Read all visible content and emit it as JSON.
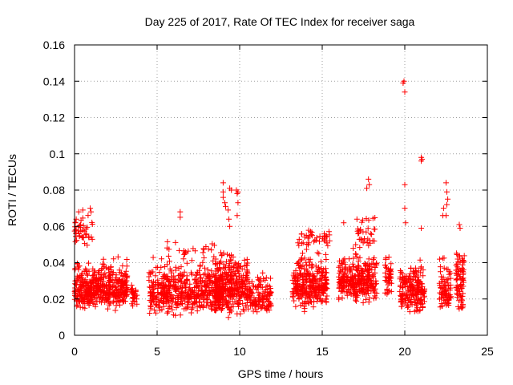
{
  "colors": {
    "marker": "#ff0000",
    "axis": "#000000",
    "grid": "#a0a0a0"
  },
  "chart_data": {
    "type": "scatter",
    "title": "Day 225 of 2017, Rate Of TEC Index for receiver saga",
    "xlabel": "GPS time / hours",
    "ylabel": "ROTI / TECUs",
    "xlim": [
      0,
      25
    ],
    "ylim": [
      0,
      0.16
    ],
    "xticks": [
      0,
      5,
      10,
      15,
      20,
      25
    ],
    "xtick_labels": [
      "0",
      "5",
      "10",
      "15",
      "20",
      "25"
    ],
    "yticks": [
      0,
      0.02,
      0.04,
      0.06,
      0.08,
      0.1,
      0.12,
      0.14,
      0.16
    ],
    "ytick_labels": [
      "0",
      "0.02",
      "0.04",
      "0.06",
      "0.08",
      "0.1",
      "0.12",
      "0.14",
      "0.16"
    ],
    "grid": true,
    "marker": "+",
    "clusters": [
      {
        "x": [
          0.0,
          3.2
        ],
        "ylow": 0.012,
        "yhigh": 0.045,
        "ymed": 0.025,
        "n": 480
      },
      {
        "x": [
          0.0,
          1.1
        ],
        "ylow": 0.045,
        "yhigh": 0.07,
        "ymed": 0.058,
        "n": 40
      },
      {
        "x": [
          3.4,
          3.8
        ],
        "ylow": 0.012,
        "yhigh": 0.032,
        "ymed": 0.022,
        "n": 30
      },
      {
        "x": [
          4.5,
          9.0
        ],
        "ylow": 0.008,
        "yhigh": 0.045,
        "ymed": 0.024,
        "n": 520
      },
      {
        "x": [
          5.5,
          8.5
        ],
        "ylow": 0.04,
        "yhigh": 0.058,
        "ymed": 0.048,
        "n": 25
      },
      {
        "x": [
          8.5,
          10.5
        ],
        "ylow": 0.008,
        "yhigh": 0.05,
        "ymed": 0.026,
        "n": 340
      },
      {
        "x": [
          10.5,
          11.9
        ],
        "ylow": 0.01,
        "yhigh": 0.04,
        "ymed": 0.02,
        "n": 130
      },
      {
        "x": [
          13.2,
          15.3
        ],
        "ylow": 0.012,
        "yhigh": 0.05,
        "ymed": 0.028,
        "n": 300
      },
      {
        "x": [
          13.5,
          15.5
        ],
        "ylow": 0.045,
        "yhigh": 0.06,
        "ymed": 0.054,
        "n": 40
      },
      {
        "x": [
          16.0,
          18.3
        ],
        "ylow": 0.015,
        "yhigh": 0.05,
        "ymed": 0.03,
        "n": 320
      },
      {
        "x": [
          17.0,
          18.2
        ],
        "ylow": 0.045,
        "yhigh": 0.07,
        "ymed": 0.055,
        "n": 35
      },
      {
        "x": [
          18.8,
          19.2
        ],
        "ylow": 0.015,
        "yhigh": 0.05,
        "ymed": 0.032,
        "n": 45
      },
      {
        "x": [
          19.7,
          21.2
        ],
        "ylow": 0.01,
        "yhigh": 0.045,
        "ymed": 0.024,
        "n": 200
      },
      {
        "x": [
          22.1,
          22.8
        ],
        "ylow": 0.01,
        "yhigh": 0.05,
        "ymed": 0.025,
        "n": 80
      },
      {
        "x": [
          23.1,
          23.6
        ],
        "ylow": 0.01,
        "yhigh": 0.055,
        "ymed": 0.028,
        "n": 80
      }
    ],
    "outliers": [
      {
        "x": 0.05,
        "y": 0.062
      },
      {
        "x": 0.1,
        "y": 0.064
      },
      {
        "x": 0.25,
        "y": 0.068
      },
      {
        "x": 0.5,
        "y": 0.069
      },
      {
        "x": 0.95,
        "y": 0.07
      },
      {
        "x": 1.0,
        "y": 0.068
      },
      {
        "x": 6.4,
        "y": 0.065
      },
      {
        "x": 6.4,
        "y": 0.068
      },
      {
        "x": 9.0,
        "y": 0.084
      },
      {
        "x": 9.0,
        "y": 0.079
      },
      {
        "x": 9.0,
        "y": 0.076
      },
      {
        "x": 9.1,
        "y": 0.073
      },
      {
        "x": 9.15,
        "y": 0.071
      },
      {
        "x": 9.4,
        "y": 0.081
      },
      {
        "x": 9.5,
        "y": 0.08
      },
      {
        "x": 9.3,
        "y": 0.069
      },
      {
        "x": 9.35,
        "y": 0.064
      },
      {
        "x": 9.4,
        "y": 0.06
      },
      {
        "x": 9.8,
        "y": 0.08
      },
      {
        "x": 9.85,
        "y": 0.078
      },
      {
        "x": 9.9,
        "y": 0.079
      },
      {
        "x": 9.9,
        "y": 0.073
      },
      {
        "x": 9.85,
        "y": 0.066
      },
      {
        "x": 16.3,
        "y": 0.062
      },
      {
        "x": 17.1,
        "y": 0.064
      },
      {
        "x": 17.7,
        "y": 0.081
      },
      {
        "x": 17.8,
        "y": 0.086
      },
      {
        "x": 17.85,
        "y": 0.083
      },
      {
        "x": 19.9,
        "y": 0.139
      },
      {
        "x": 19.95,
        "y": 0.14
      },
      {
        "x": 20.0,
        "y": 0.134
      },
      {
        "x": 20.0,
        "y": 0.083
      },
      {
        "x": 20.0,
        "y": 0.07
      },
      {
        "x": 20.05,
        "y": 0.062
      },
      {
        "x": 21.0,
        "y": 0.098
      },
      {
        "x": 21.05,
        "y": 0.097
      },
      {
        "x": 21.0,
        "y": 0.096
      },
      {
        "x": 21.0,
        "y": 0.059
      },
      {
        "x": 22.3,
        "y": 0.066
      },
      {
        "x": 22.35,
        "y": 0.07
      },
      {
        "x": 22.5,
        "y": 0.084
      },
      {
        "x": 22.55,
        "y": 0.079
      },
      {
        "x": 22.6,
        "y": 0.075
      },
      {
        "x": 22.55,
        "y": 0.072
      },
      {
        "x": 22.5,
        "y": 0.066
      },
      {
        "x": 23.3,
        "y": 0.061
      },
      {
        "x": 23.35,
        "y": 0.059
      }
    ]
  }
}
